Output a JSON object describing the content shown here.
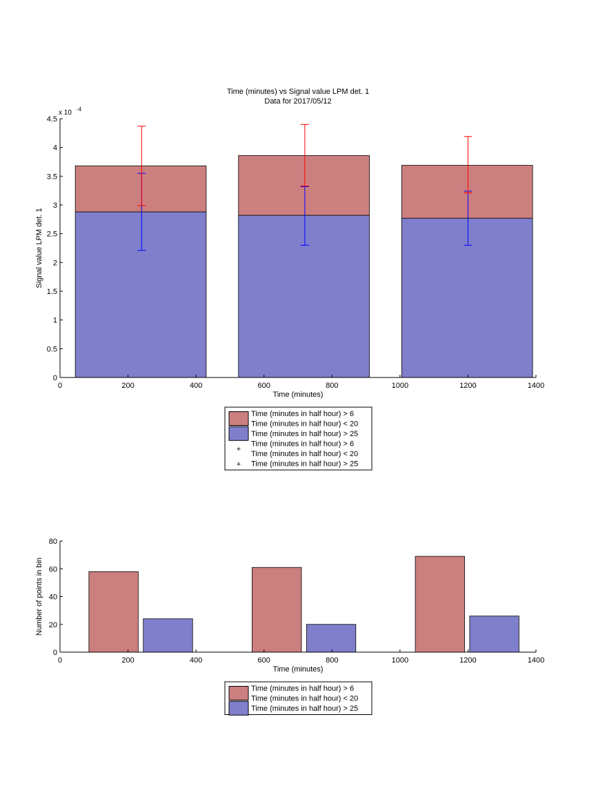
{
  "figure": {
    "title": "Time (minutes) vs Signal value LPM det. 1",
    "subtitle": "Data for 2017/05/12"
  },
  "colors": {
    "red_fill": "#cc7f7f",
    "blue_fill": "#7f7fcc",
    "red_errorbar": "#ff0000",
    "blue_errorbar": "#0000ff",
    "axis": "#000000"
  },
  "chart_data": [
    {
      "type": "bar",
      "stacked": true,
      "title": "Time (minutes) vs Signal value LPM det. 1",
      "subtitle": "Data for 2017/05/12",
      "xlabel": "Time (minutes)",
      "ylabel": "Signal value LPM det. 1",
      "y_exponent": "x 10",
      "y_exponent_power": "-4",
      "xlim": [
        0,
        1400
      ],
      "ylim": [
        0,
        4.5
      ],
      "xticks": [
        0,
        200,
        400,
        600,
        800,
        1000,
        1200,
        1400
      ],
      "yticks": [
        0,
        0.5,
        1,
        1.5,
        2,
        2.5,
        3,
        3.5,
        4,
        4.5
      ],
      "xtick_labels": [
        "0",
        "200",
        "400",
        "600",
        "800",
        "1000",
        "1200",
        "1400"
      ],
      "ytick_labels": [
        "0",
        "0.5",
        "1",
        "1.5",
        "2",
        "2.5",
        "3",
        "3.5",
        "4",
        "4.5"
      ],
      "grid": false,
      "legend_position": "below",
      "bars": [
        {
          "x_start": 45,
          "x_end": 430,
          "blue": 2.88,
          "total": 3.68
        },
        {
          "x_start": 525,
          "x_end": 910,
          "blue": 2.82,
          "total": 3.86
        },
        {
          "x_start": 1005,
          "x_end": 1390,
          "blue": 2.77,
          "total": 3.69
        }
      ],
      "error_bars": {
        "red": [
          {
            "x": 240,
            "center": 3.68,
            "low": 2.99,
            "high": 4.37
          },
          {
            "x": 720,
            "center": 3.86,
            "low": 3.33,
            "high": 4.4
          },
          {
            "x": 1200,
            "center": 3.69,
            "low": 3.21,
            "high": 4.19
          }
        ],
        "blue": [
          {
            "x": 240,
            "center": 2.88,
            "low": 2.21,
            "high": 3.55
          },
          {
            "x": 720,
            "center": 2.82,
            "low": 2.3,
            "high": 3.32
          },
          {
            "x": 1200,
            "center": 2.77,
            "low": 2.3,
            "high": 3.24
          }
        ]
      },
      "legend": [
        {
          "kind": "patch",
          "color": "red",
          "lines": [
            "Time (minutes in half hour) > 6",
            "Time (minutes in half hour) < 20"
          ]
        },
        {
          "kind": "patch",
          "color": "blue",
          "lines": [
            "Time (minutes in half hour) > 25"
          ]
        },
        {
          "kind": "marker",
          "color": "red",
          "lines": [
            "Time (minutes in half hour) > 6",
            "Time (minutes in half hour) < 20"
          ]
        },
        {
          "kind": "marker",
          "color": "blue",
          "lines": [
            "Time (minutes in half hour) > 25"
          ]
        }
      ]
    },
    {
      "type": "bar",
      "xlabel": "Time (minutes)",
      "ylabel": "Number of points in bin",
      "xlim": [
        0,
        1400
      ],
      "ylim": [
        0,
        80
      ],
      "xticks": [
        0,
        200,
        400,
        600,
        800,
        1000,
        1200,
        1400
      ],
      "yticks": [
        0,
        20,
        40,
        60,
        80
      ],
      "xtick_labels": [
        "0",
        "200",
        "400",
        "600",
        "800",
        "1000",
        "1200",
        "1400"
      ],
      "ytick_labels": [
        "0",
        "20",
        "40",
        "60",
        "80"
      ],
      "grid": false,
      "legend_position": "below",
      "bars": [
        {
          "color": "red",
          "x_start": 85,
          "x_end": 230,
          "value": 58
        },
        {
          "color": "blue",
          "x_start": 245,
          "x_end": 390,
          "value": 24
        },
        {
          "color": "red",
          "x_start": 565,
          "x_end": 710,
          "value": 61
        },
        {
          "color": "blue",
          "x_start": 725,
          "x_end": 870,
          "value": 20
        },
        {
          "color": "red",
          "x_start": 1045,
          "x_end": 1190,
          "value": 69
        },
        {
          "color": "blue",
          "x_start": 1205,
          "x_end": 1350,
          "value": 26
        }
      ],
      "legend": [
        {
          "kind": "patch",
          "color": "red",
          "lines": [
            "Time (minutes in half hour) > 6",
            "Time (minutes in half hour) < 20"
          ]
        },
        {
          "kind": "patch",
          "color": "blue",
          "lines": [
            "Time (minutes in half hour) > 25"
          ]
        }
      ]
    }
  ]
}
